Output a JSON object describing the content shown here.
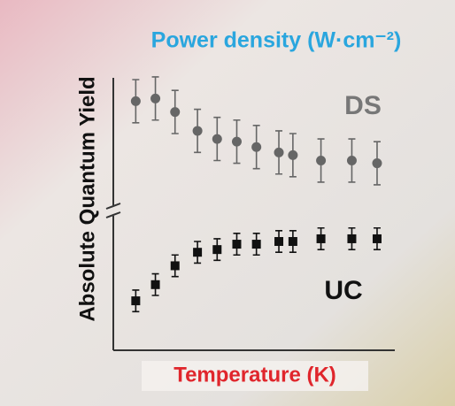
{
  "chart_data": {
    "type": "errorbar-scatter",
    "title": "Power density (W·cm⁻²)",
    "xlabel": "Temperature (K)",
    "ylabel": "Absolute Quantum Yield",
    "x": [
      8,
      15,
      22,
      30,
      37,
      44,
      51,
      59,
      64,
      74,
      85,
      94
    ],
    "xlim": [
      0,
      100
    ],
    "ylim": [
      0,
      100
    ],
    "series": [
      {
        "name": "DS",
        "color": "#666666",
        "marker": "circle",
        "values": [
          92,
          93,
          88,
          81,
          78,
          77,
          75,
          73,
          72,
          70,
          70,
          69
        ],
        "errors": [
          8,
          8,
          8,
          8,
          8,
          8,
          8,
          8,
          8,
          8,
          8,
          8
        ]
      },
      {
        "name": "UC",
        "color": "#111111",
        "marker": "square",
        "values": [
          18,
          24,
          31,
          36,
          37,
          39,
          39,
          40,
          40,
          41,
          41,
          41
        ],
        "errors": [
          4,
          4,
          4,
          4,
          4,
          4,
          4,
          4,
          4,
          4,
          4,
          4
        ]
      }
    ]
  }
}
